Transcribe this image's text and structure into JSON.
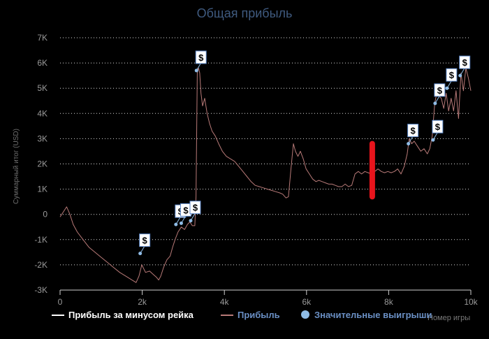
{
  "chart_data": {
    "type": "line",
    "title": "Общая прибыль",
    "xlabel": "Номер игры",
    "ylabel": "Суммарный итог (USD)",
    "xlim": [
      0,
      10000
    ],
    "ylim": [
      -3000,
      7000
    ],
    "x_ticks": [
      0,
      2000,
      4000,
      6000,
      8000,
      10000
    ],
    "x_tick_labels": [
      "0",
      "2k",
      "4k",
      "6k",
      "8k",
      "10k"
    ],
    "y_ticks": [
      -3000,
      -2000,
      -1000,
      0,
      1000,
      2000,
      3000,
      4000,
      5000,
      6000,
      7000
    ],
    "y_tick_labels": [
      "-3K",
      "-2K",
      "-1K",
      "0",
      "1K",
      "2K",
      "3K",
      "4K",
      "5K",
      "6K",
      "7K"
    ],
    "grid": "horizontal-dotted",
    "legend_position": "bottom-left",
    "series": [
      {
        "name": "Прибыль за минусом рейка",
        "color": "#ffffff",
        "values": []
      },
      {
        "name": "Прибыль",
        "color": "#b87a78",
        "x": [
          0,
          80,
          160,
          240,
          320,
          420,
          560,
          700,
          850,
          1000,
          1150,
          1300,
          1450,
          1600,
          1750,
          1850,
          1920,
          1990,
          2080,
          2180,
          2280,
          2350,
          2400,
          2450,
          2520,
          2600,
          2680,
          2740,
          2800,
          2870,
          2950,
          3030,
          3100,
          3160,
          3220,
          3280,
          3310,
          3340,
          3370,
          3400,
          3430,
          3470,
          3520,
          3580,
          3640,
          3700,
          3780,
          3860,
          3950,
          4050,
          4150,
          4250,
          4350,
          4450,
          4550,
          4650,
          4750,
          4850,
          4950,
          5050,
          5150,
          5250,
          5350,
          5420,
          5500,
          5560,
          5620,
          5680,
          5730,
          5790,
          5850,
          5920,
          5990,
          6070,
          6150,
          6230,
          6300,
          6380,
          6460,
          6540,
          6620,
          6700,
          6780,
          6860,
          6940,
          7020,
          7100,
          7180,
          7260,
          7340,
          7420,
          7500,
          7580,
          7660,
          7740,
          7820,
          7900,
          7980,
          8060,
          8140,
          8220,
          8300,
          8380,
          8450,
          8500,
          8560,
          8620,
          8700,
          8780,
          8860,
          8940,
          9000,
          9060,
          9120,
          9170,
          9220,
          9280,
          9340,
          9400,
          9460,
          9520,
          9580,
          9640,
          9700,
          9760,
          9820,
          9880,
          9940,
          10000
        ],
        "y": [
          -100,
          100,
          300,
          0,
          -400,
          -700,
          -1000,
          -1300,
          -1500,
          -1700,
          -1900,
          -2100,
          -2300,
          -2450,
          -2600,
          -2700,
          -2450,
          -2000,
          -2300,
          -2250,
          -2400,
          -2500,
          -2600,
          -2450,
          -2100,
          -1800,
          -1650,
          -1300,
          -1000,
          -700,
          -500,
          -600,
          -400,
          -300,
          -450,
          -450,
          700,
          5600,
          5800,
          5600,
          4800,
          4300,
          4600,
          4000,
          3600,
          3300,
          3100,
          2800,
          2500,
          2300,
          2200,
          2100,
          1900,
          1700,
          1500,
          1300,
          1150,
          1100,
          1050,
          1000,
          950,
          900,
          850,
          800,
          650,
          700,
          1800,
          2800,
          2500,
          2300,
          2500,
          2200,
          1800,
          1600,
          1400,
          1300,
          1350,
          1300,
          1250,
          1200,
          1200,
          1150,
          1100,
          1100,
          1200,
          1100,
          1150,
          1600,
          1700,
          1600,
          1700,
          1650,
          1600,
          1700,
          1800,
          1700,
          1650,
          1700,
          1650,
          1700,
          1800,
          1600,
          1900,
          2400,
          3000,
          2800,
          2900,
          2700,
          2500,
          2600,
          2400,
          2600,
          3100,
          4400,
          4800,
          4700,
          4600,
          4200,
          4800,
          4100,
          4600,
          4100,
          4900,
          3800,
          5600,
          4900,
          5800,
          5400,
          4900
        ],
        "line_width": 1
      },
      {
        "name": "Значительные выигрыши",
        "color": "#8fbce6",
        "type": "scatter",
        "marker_label": "$",
        "x": [
          1950,
          2820,
          2950,
          3180,
          3320,
          8480,
          9080,
          9130,
          9420,
          9740
        ],
        "y": [
          -1550,
          -400,
          -350,
          -250,
          5700,
          2800,
          2950,
          4400,
          5000,
          5500
        ]
      }
    ],
    "annotations": [
      {
        "type": "marker-stroke",
        "color": "#e8141c",
        "x": 7600,
        "y_from": 700,
        "y_to": 2800
      }
    ]
  }
}
